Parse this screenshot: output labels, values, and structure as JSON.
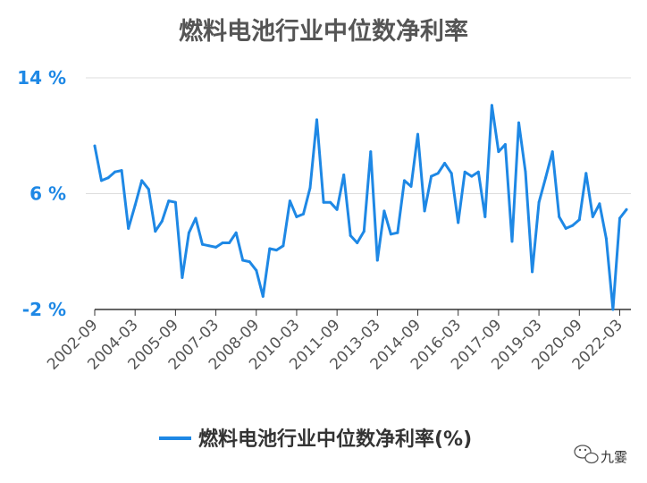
{
  "chart_data": {
    "type": "line",
    "title": "燃料电池行业中位数净利率",
    "xlabel": "",
    "ylabel": "",
    "ylim": [
      -2,
      14
    ],
    "yticks": [
      "14 %",
      "6 %",
      "-2 %"
    ],
    "ytick_values": [
      14,
      6,
      -2
    ],
    "grid": true,
    "legend_position": "bottom",
    "x_tick_labels": [
      "2002-09",
      "2004-03",
      "2005-09",
      "2007-03",
      "2008-09",
      "2010-03",
      "2011-09",
      "2013-03",
      "2014-09",
      "2016-03",
      "2017-09",
      "2019-03",
      "2020-09",
      "2022-03"
    ],
    "series": [
      {
        "name": "燃料电池行业中位数净利率(%)",
        "color": "#1e88e5",
        "values": [
          9.3,
          6.9,
          7.1,
          7.5,
          7.6,
          3.6,
          5.2,
          6.9,
          6.3,
          3.4,
          4.1,
          5.5,
          5.4,
          0.2,
          3.3,
          4.3,
          2.5,
          2.4,
          2.3,
          2.6,
          2.6,
          3.3,
          1.4,
          1.3,
          0.7,
          -1.1,
          2.2,
          2.1,
          2.4,
          5.5,
          4.4,
          4.6,
          6.4,
          11.1,
          5.4,
          5.4,
          4.9,
          7.3,
          3.1,
          2.6,
          3.4,
          8.9,
          1.4,
          4.8,
          3.2,
          3.3,
          6.9,
          6.5,
          10.1,
          4.8,
          7.2,
          7.4,
          8.1,
          7.4,
          4.0,
          7.5,
          7.2,
          7.5,
          4.4,
          12.1,
          8.9,
          9.4,
          2.7,
          10.9,
          7.5,
          0.6,
          5.4,
          7.1,
          8.9,
          4.4,
          3.6,
          3.8,
          4.2,
          7.4,
          4.4,
          5.3,
          2.9,
          -2.0,
          4.3,
          4.9
        ]
      }
    ]
  },
  "watermark": {
    "icon": "wechat-icon",
    "text": "九霎"
  }
}
